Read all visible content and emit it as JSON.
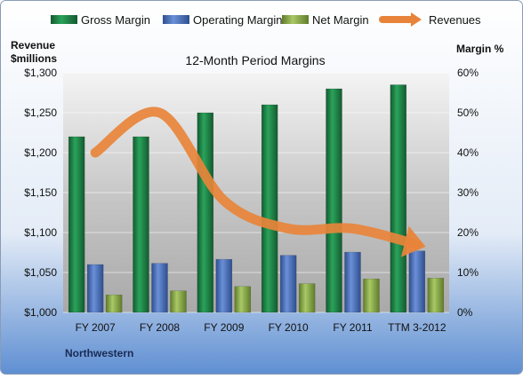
{
  "chart_data": {
    "type": "bar",
    "title": "12-Month Period Margins",
    "company": "Northwestern",
    "y_left_label_line1": "Revenue",
    "y_left_label_line2": "$millions",
    "y_right_label": "Margin %",
    "categories": [
      "FY 2007",
      "FY 2008",
      "FY 2009",
      "FY 2010",
      "FY 2011",
      "TTM 3-2012"
    ],
    "y_left_ticks": [
      "$1,000",
      "$1,050",
      "$1,100",
      "$1,150",
      "$1,200",
      "$1,250",
      "$1,300"
    ],
    "y_right_ticks": [
      "0%",
      "10%",
      "20%",
      "30%",
      "40%",
      "50%",
      "60%"
    ],
    "ylim_left": [
      1000,
      1300
    ],
    "ylim_right": [
      0,
      60
    ],
    "legend_placement": "top",
    "series": [
      {
        "name": "Gross Margin",
        "axis": "right",
        "color": "#1e8a4a",
        "values": [
          44,
          44,
          50,
          52,
          56,
          57
        ]
      },
      {
        "name": "Operating Margin",
        "axis": "right",
        "color": "#4a72c0",
        "values": [
          12,
          12.3,
          13.3,
          14.3,
          15.1,
          15.4
        ]
      },
      {
        "name": "Net Margin",
        "axis": "right",
        "color": "#8cb04a",
        "values": [
          4.4,
          5.4,
          6.5,
          7.2,
          8.4,
          8.6
        ]
      },
      {
        "name": "Revenues",
        "axis": "left",
        "type": "line",
        "color": "#e8843a",
        "values": [
          1200,
          1250,
          1140,
          1105,
          1105,
          1085
        ]
      }
    ]
  }
}
